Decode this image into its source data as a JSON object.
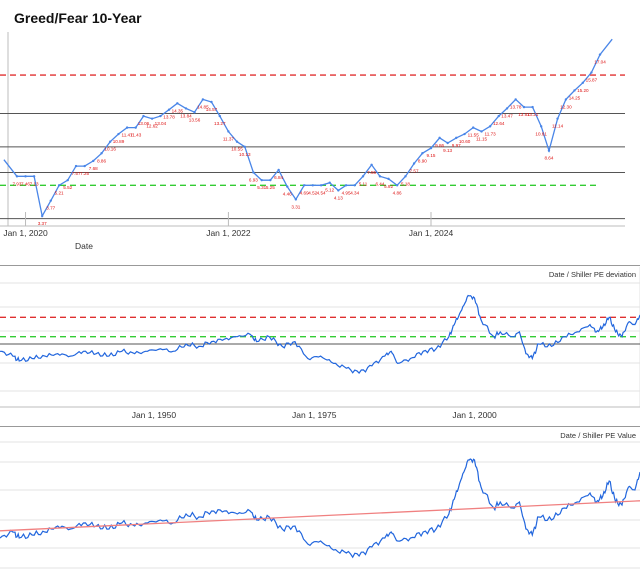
{
  "chart_data": [
    {
      "type": "line",
      "title": "Greed/Fear 10-Year",
      "xlabel": "Date",
      "x_ticks": [
        "Jan 1, 2020",
        "Jan 1, 2022",
        "Jan 1, 2024"
      ],
      "x_range": [
        "2019-10-01",
        "2025-11-30"
      ],
      "reference_lines": [
        {
          "value": 17.2,
          "color": "#e03030",
          "style": "dashed"
        },
        {
          "value": 14.2,
          "color": "#555555",
          "style": "solid"
        },
        {
          "value": 11.6,
          "color": "#555555",
          "style": "solid"
        },
        {
          "value": 9.6,
          "color": "#555555",
          "style": "solid"
        },
        {
          "value": 8.6,
          "color": "#33cc33",
          "style": "dashed"
        },
        {
          "value": 6.0,
          "color": "#555555",
          "style": "solid"
        }
      ],
      "grid": false,
      "ylim": [
        5.5,
        21.5
      ],
      "series": [
        {
          "color": "#4a86e8",
          "label_color": "#dd1111",
          "points": [
            {
              "x": "2019-10-15",
              "y": 10.6,
              "label": ""
            },
            {
              "x": "2019-12-01",
              "y": 9.3,
              "label": "7.93"
            },
            {
              "x": "2020-01-01",
              "y": 9.3,
              "label": "7.46"
            },
            {
              "x": "2020-02-01",
              "y": 9.3,
              "label": "7.13"
            },
            {
              "x": "2020-03-01",
              "y": 6.2,
              "label": "3.37"
            },
            {
              "x": "2020-04-01",
              "y": 7.4,
              "label": "3.77"
            },
            {
              "x": "2020-05-01",
              "y": 8.6,
              "label": "5.21"
            },
            {
              "x": "2020-06-01",
              "y": 9.0,
              "label": "5.52"
            },
            {
              "x": "2020-07-01",
              "y": 10.1,
              "label": "7.57"
            },
            {
              "x": "2020-08-01",
              "y": 10.1,
              "label": "7.25"
            },
            {
              "x": "2020-09-01",
              "y": 10.5,
              "label": "7.68"
            },
            {
              "x": "2020-10-01",
              "y": 11.1,
              "label": "8.86"
            },
            {
              "x": "2020-11-01",
              "y": 12.0,
              "label": "10.16"
            },
            {
              "x": "2020-12-01",
              "y": 12.6,
              "label": "10.89"
            },
            {
              "x": "2021-01-01",
              "y": 13.1,
              "label": "11.47"
            },
            {
              "x": "2021-02-01",
              "y": 13.1,
              "label": "11.43"
            },
            {
              "x": "2021-03-01",
              "y": 14.0,
              "label": "13.06"
            },
            {
              "x": "2021-04-01",
              "y": 13.8,
              "label": "12.62"
            },
            {
              "x": "2021-05-01",
              "y": 14.0,
              "label": "13.04"
            },
            {
              "x": "2021-06-01",
              "y": 14.5,
              "label": "13.78"
            },
            {
              "x": "2021-07-01",
              "y": 15.0,
              "label": "14.35"
            },
            {
              "x": "2021-08-01",
              "y": 14.6,
              "label": "13.84"
            },
            {
              "x": "2021-09-01",
              "y": 14.3,
              "label": "13.56"
            },
            {
              "x": "2021-10-01",
              "y": 15.3,
              "label": "14.85"
            },
            {
              "x": "2021-11-01",
              "y": 15.1,
              "label": "14.57"
            },
            {
              "x": "2021-12-01",
              "y": 14.0,
              "label": "13.27"
            },
            {
              "x": "2022-01-01",
              "y": 12.8,
              "label": "11.37"
            },
            {
              "x": "2022-02-01",
              "y": 12.0,
              "label": "10.55"
            },
            {
              "x": "2022-03-01",
              "y": 11.6,
              "label": "10.13"
            },
            {
              "x": "2022-04-01",
              "y": 9.6,
              "label": "6.93"
            },
            {
              "x": "2022-05-01",
              "y": 9.0,
              "label": "5.31"
            },
            {
              "x": "2022-06-01",
              "y": 9.0,
              "label": "5.25"
            },
            {
              "x": "2022-07-01",
              "y": 9.8,
              "label": "6.84"
            },
            {
              "x": "2022-08-01",
              "y": 8.5,
              "label": "4.46"
            },
            {
              "x": "2022-09-01",
              "y": 7.5,
              "label": "3.31"
            },
            {
              "x": "2022-10-01",
              "y": 8.6,
              "label": "4.69"
            },
            {
              "x": "2022-11-01",
              "y": 8.6,
              "label": "4.52"
            },
            {
              "x": "2022-12-01",
              "y": 8.6,
              "label": "4.54"
            },
            {
              "x": "2023-01-01",
              "y": 8.8,
              "label": "5.12"
            },
            {
              "x": "2023-02-01",
              "y": 8.2,
              "label": "4.13"
            },
            {
              "x": "2023-03-01",
              "y": 8.6,
              "label": "4.95"
            },
            {
              "x": "2023-04-01",
              "y": 8.6,
              "label": "4.34"
            },
            {
              "x": "2023-05-01",
              "y": 9.3,
              "label": "5.11"
            },
            {
              "x": "2023-06-01",
              "y": 10.2,
              "label": "7.55"
            },
            {
              "x": "2023-07-01",
              "y": 9.3,
              "label": "6.44"
            },
            {
              "x": "2023-08-01",
              "y": 9.1,
              "label": "5.92"
            },
            {
              "x": "2023-09-01",
              "y": 8.6,
              "label": "4.86"
            },
            {
              "x": "2023-10-01",
              "y": 9.3,
              "label": "5.18"
            },
            {
              "x": "2023-11-01",
              "y": 10.3,
              "label": "7.57"
            },
            {
              "x": "2023-12-01",
              "y": 11.1,
              "label": "8.90"
            },
            {
              "x": "2024-01-01",
              "y": 11.5,
              "label": "9.15"
            },
            {
              "x": "2024-02-01",
              "y": 12.3,
              "label": "9.86"
            },
            {
              "x": "2024-03-01",
              "y": 11.9,
              "label": "9.13"
            },
            {
              "x": "2024-04-01",
              "y": 12.3,
              "label": "9.97"
            },
            {
              "x": "2024-05-01",
              "y": 12.6,
              "label": "10.60"
            },
            {
              "x": "2024-06-01",
              "y": 13.1,
              "label": "11.55"
            },
            {
              "x": "2024-07-01",
              "y": 12.8,
              "label": "11.15"
            },
            {
              "x": "2024-08-01",
              "y": 13.2,
              "label": "11.73"
            },
            {
              "x": "2024-09-01",
              "y": 14.0,
              "label": "12.64"
            },
            {
              "x": "2024-10-01",
              "y": 14.6,
              "label": "13.47"
            },
            {
              "x": "2024-11-01",
              "y": 15.3,
              "label": "13.78"
            },
            {
              "x": "2024-12-01",
              "y": 14.7,
              "label": "13.51"
            },
            {
              "x": "2025-01-01",
              "y": 14.7,
              "label": "13.21"
            },
            {
              "x": "2025-02-01",
              "y": 13.2,
              "label": "10.61"
            },
            {
              "x": "2025-03-01",
              "y": 11.3,
              "label": "8.64"
            },
            {
              "x": "2025-04-01",
              "y": 13.8,
              "label": "11.14"
            },
            {
              "x": "2025-05-01",
              "y": 15.3,
              "label": "12.30"
            },
            {
              "x": "2025-06-01",
              "y": 16.0,
              "label": "14.25"
            },
            {
              "x": "2025-07-01",
              "y": 16.6,
              "label": "15.20"
            },
            {
              "x": "2025-08-01",
              "y": 17.4,
              "label": "15.87"
            },
            {
              "x": "2025-09-01",
              "y": 18.8,
              "label": "17.04"
            },
            {
              "x": "2025-10-15",
              "y": 20.0,
              "label": ""
            }
          ]
        }
      ]
    },
    {
      "type": "line",
      "title": "Date / Shiller PE deviation",
      "x_ticks": [
        "Jan 1, 1950",
        "Jan 1, 1975",
        "Jan 1, 2000"
      ],
      "x_range": [
        1926.0,
        2025.8
      ],
      "ylim": [
        -1.0,
        1.6
      ],
      "grid": true,
      "reference_lines": [
        {
          "value": 0.85,
          "color": "#e03030",
          "style": "dashed"
        },
        {
          "value": 0.45,
          "color": "#33cc33",
          "style": "dashed"
        },
        {
          "value": 0.3,
          "color": "#555555",
          "style": "solid"
        }
      ],
      "series": [
        {
          "color": "#2266dd",
          "points": [
            [
              1926,
              0.15
            ],
            [
              1928,
              0.05
            ],
            [
              1929,
              -0.05
            ],
            [
              1931,
              0.0
            ],
            [
              1933,
              0.05
            ],
            [
              1935,
              0.1
            ],
            [
              1937,
              0.05
            ],
            [
              1939,
              0.15
            ],
            [
              1941,
              0.1
            ],
            [
              1943,
              0.05
            ],
            [
              1945,
              0.15
            ],
            [
              1947,
              0.1
            ],
            [
              1949,
              0.15
            ],
            [
              1951,
              0.2
            ],
            [
              1953,
              0.15
            ],
            [
              1955,
              0.3
            ],
            [
              1957,
              0.25
            ],
            [
              1959,
              0.35
            ],
            [
              1961,
              0.4
            ],
            [
              1963,
              0.45
            ],
            [
              1965,
              0.5
            ],
            [
              1966,
              0.35
            ],
            [
              1968,
              0.45
            ],
            [
              1970,
              0.25
            ],
            [
              1972,
              0.35
            ],
            [
              1974,
              0.0
            ],
            [
              1976,
              0.05
            ],
            [
              1978,
              -0.1
            ],
            [
              1980,
              -0.2
            ],
            [
              1982,
              -0.3
            ],
            [
              1984,
              -0.15
            ],
            [
              1986,
              0.05
            ],
            [
              1987,
              0.15
            ],
            [
              1988,
              -0.1
            ],
            [
              1990,
              0.0
            ],
            [
              1992,
              0.15
            ],
            [
              1994,
              0.2
            ],
            [
              1996,
              0.45
            ],
            [
              1997,
              0.75
            ],
            [
              1998,
              1.0
            ],
            [
              1999,
              1.3
            ],
            [
              2000,
              1.25
            ],
            [
              2001,
              0.8
            ],
            [
              2003,
              0.45
            ],
            [
              2004,
              0.55
            ],
            [
              2006,
              0.45
            ],
            [
              2007,
              0.55
            ],
            [
              2008,
              0.1
            ],
            [
              2009,
              0.0
            ],
            [
              2010,
              0.3
            ],
            [
              2012,
              0.25
            ],
            [
              2014,
              0.45
            ],
            [
              2016,
              0.55
            ],
            [
              2018,
              0.7
            ],
            [
              2019,
              0.55
            ],
            [
              2020,
              0.65
            ],
            [
              2021,
              0.85
            ],
            [
              2022,
              0.55
            ],
            [
              2023,
              0.45
            ],
            [
              2024,
              0.75
            ],
            [
              2025,
              0.7
            ],
            [
              2025.8,
              0.9
            ]
          ]
        }
      ]
    },
    {
      "type": "line",
      "title": "Date / Shiller PE Value",
      "x_range": [
        1926.0,
        2025.8
      ],
      "ylim": [
        -0.5,
        1.6
      ],
      "grid": true,
      "series": [
        {
          "color": "#2266dd",
          "points": [
            [
              1926,
              0.0
            ],
            [
              1928,
              0.1
            ],
            [
              1929,
              0.0
            ],
            [
              1931,
              0.05
            ],
            [
              1933,
              0.1
            ],
            [
              1935,
              0.2
            ],
            [
              1937,
              0.15
            ],
            [
              1939,
              0.25
            ],
            [
              1941,
              0.2
            ],
            [
              1943,
              0.15
            ],
            [
              1945,
              0.25
            ],
            [
              1947,
              0.2
            ],
            [
              1949,
              0.25
            ],
            [
              1951,
              0.3
            ],
            [
              1953,
              0.25
            ],
            [
              1955,
              0.4
            ],
            [
              1957,
              0.35
            ],
            [
              1959,
              0.45
            ],
            [
              1961,
              0.45
            ],
            [
              1963,
              0.4
            ],
            [
              1965,
              0.45
            ],
            [
              1966,
              0.3
            ],
            [
              1968,
              0.35
            ],
            [
              1970,
              0.15
            ],
            [
              1972,
              0.2
            ],
            [
              1974,
              -0.1
            ],
            [
              1976,
              -0.05
            ],
            [
              1978,
              -0.2
            ],
            [
              1980,
              -0.25
            ],
            [
              1982,
              -0.3
            ],
            [
              1984,
              -0.15
            ],
            [
              1986,
              0.0
            ],
            [
              1987,
              0.1
            ],
            [
              1988,
              -0.05
            ],
            [
              1990,
              0.0
            ],
            [
              1992,
              0.1
            ],
            [
              1994,
              0.15
            ],
            [
              1996,
              0.4
            ],
            [
              1997,
              0.7
            ],
            [
              1998,
              1.0
            ],
            [
              1999,
              1.3
            ],
            [
              2000,
              1.3
            ],
            [
              2001,
              0.85
            ],
            [
              2003,
              0.5
            ],
            [
              2004,
              0.6
            ],
            [
              2006,
              0.5
            ],
            [
              2007,
              0.6
            ],
            [
              2008,
              0.15
            ],
            [
              2009,
              0.05
            ],
            [
              2010,
              0.35
            ],
            [
              2012,
              0.3
            ],
            [
              2014,
              0.5
            ],
            [
              2016,
              0.6
            ],
            [
              2018,
              0.75
            ],
            [
              2019,
              0.6
            ],
            [
              2020,
              0.7
            ],
            [
              2021,
              0.95
            ],
            [
              2022,
              0.6
            ],
            [
              2023,
              0.55
            ],
            [
              2024,
              0.85
            ],
            [
              2025,
              0.8
            ],
            [
              2025.8,
              1.1
            ]
          ]
        },
        {
          "color": "#f08080",
          "points": [
            [
              1926,
              0.12
            ],
            [
              2025.8,
              0.62
            ]
          ]
        }
      ]
    }
  ]
}
